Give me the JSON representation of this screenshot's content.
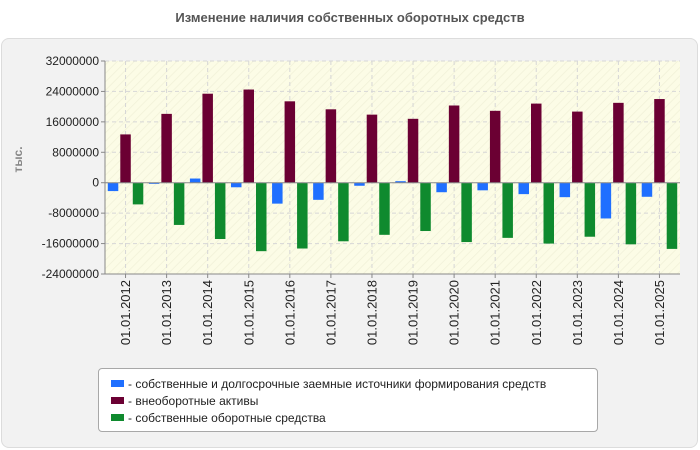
{
  "chart_data": {
    "type": "bar",
    "title": "Изменение наличия собственных оборотных средств",
    "ylabel": "тыс.",
    "xlabel": "",
    "ylim": [
      -24000000,
      32000000
    ],
    "yticks": [
      32000000,
      24000000,
      16000000,
      8000000,
      0,
      -8000000,
      -16000000,
      -24000000
    ],
    "ytick_labels": [
      "32000000",
      "24000000",
      "16000000",
      "8000000",
      "0",
      "-8000000",
      "-16000000",
      "-24000000"
    ],
    "categories": [
      "01.01.2012",
      "01.01.2013",
      "01.01.2014",
      "01.01.2015",
      "01.01.2016",
      "01.01.2017",
      "01.01.2018",
      "01.01.2019",
      "01.01.2020",
      "01.01.2021",
      "01.01.2022",
      "01.01.2023",
      "01.01.2024",
      "01.01.2025"
    ],
    "series": [
      {
        "name": "- собственные и долгосрочные заемные источники формирования средств",
        "color": "#1f6fff",
        "values": [
          -2200000,
          -300000,
          1100000,
          -1200000,
          -5500000,
          -4500000,
          -800000,
          400000,
          -2500000,
          -2000000,
          -3000000,
          -3800000,
          -9400000,
          -3700000
        ]
      },
      {
        "name": "- внеоборотные активы",
        "color": "#6b0033",
        "values": [
          12700000,
          18100000,
          23400000,
          24500000,
          21400000,
          19300000,
          17900000,
          16800000,
          20300000,
          18900000,
          20800000,
          18700000,
          21000000,
          22000000
        ]
      },
      {
        "name": "- собственные оборотные средства",
        "color": "#0f8a2e",
        "values": [
          -5700000,
          -11100000,
          -14800000,
          -18000000,
          -17300000,
          -15400000,
          -13700000,
          -12700000,
          -15600000,
          -14500000,
          -16000000,
          -14200000,
          -16200000,
          -17400000
        ]
      }
    ],
    "legend_position": "bottom"
  }
}
